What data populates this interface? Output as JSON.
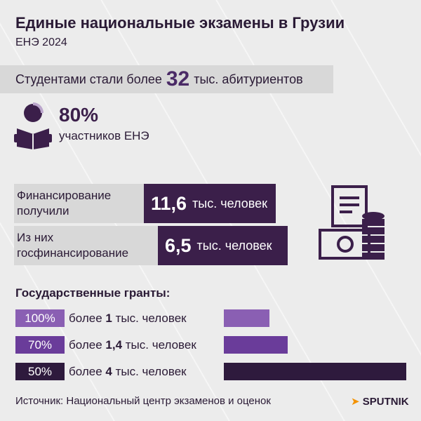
{
  "header": {
    "title": "Единые национальные экзамены в Грузии",
    "subtitle": "ЕНЭ 2024"
  },
  "students": {
    "prefix": "Студентами стали более",
    "number": "32",
    "suffix": "тыс. абитуриентов"
  },
  "participants": {
    "percent": "80%",
    "label": "участников ЕНЭ"
  },
  "funding": [
    {
      "label": "Финансирование получили",
      "number": "11,6",
      "unit": "тыс. человек"
    },
    {
      "label": "Из них госфинансирование",
      "number": "6,5",
      "unit": "тыс. человек"
    }
  ],
  "grants": {
    "heading": "Государственные гранты:",
    "rows": [
      {
        "share": "100%",
        "prefix": "более",
        "count": 1,
        "unit": "тыс. человек",
        "color": "#8a5fb3"
      },
      {
        "share": "70%",
        "prefix": "более",
        "count": {
          "value": 1.4,
          "label": "1,4"
        },
        "unit": "тыс. человек",
        "color": "#6a3c9a"
      },
      {
        "share": "50%",
        "prefix": "более",
        "count": 4,
        "unit": "тыс. человек",
        "color": "#2e1a3d"
      }
    ]
  },
  "footer": {
    "source": "Источник: Национальный центр экзаменов и оценок",
    "brand": "SPUTNIK"
  }
}
